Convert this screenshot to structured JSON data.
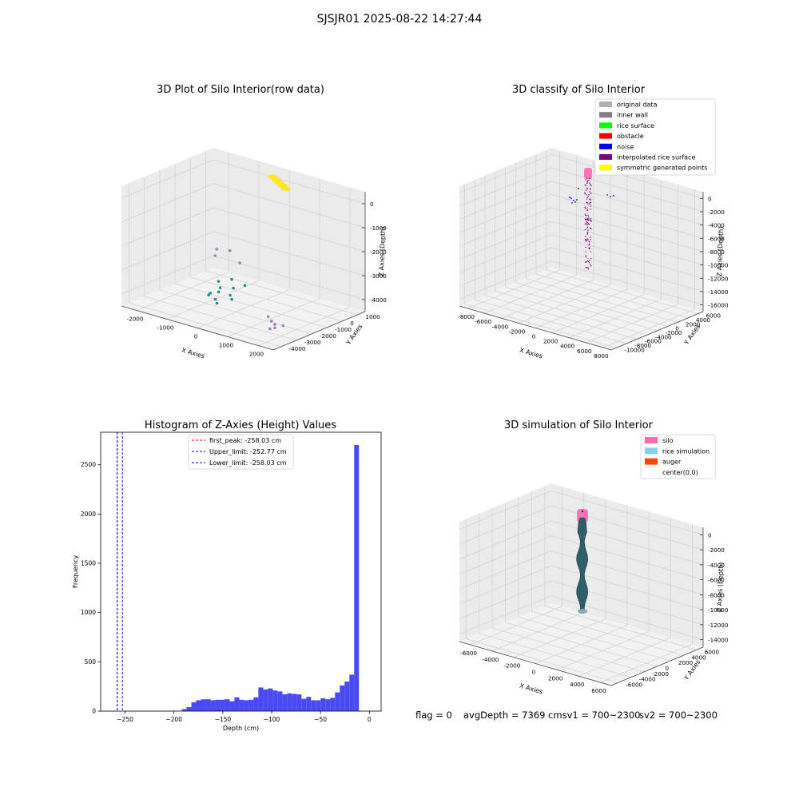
{
  "figure": {
    "suptitle": "SJSJR01 2025-08-22 14:27:44",
    "status_flag": "flag = 0",
    "status_avg": "avgDepth = 7369 cmsv1 = 700~2300",
    "status_sv2": "sv2 = 700~2300"
  },
  "chart_data": [
    {
      "type": "scatter",
      "title": "3D Plot of Silo Interior(row data)",
      "xlabel": "X Axies",
      "ylabel": "Y Axies",
      "zlabel": "Z Axies (Depth)",
      "xticks": [
        "-2000",
        "-1000",
        "0",
        "1000",
        "2000"
      ],
      "yticks": [
        "1000",
        "0",
        "-1000",
        "-2000",
        "-3000",
        "-4000"
      ],
      "zticks": [
        "0",
        "-1000",
        "-2000",
        "-3000",
        "-4000"
      ],
      "series": [
        {
          "color": "#fde725",
          "points": [
            [
              -300,
              900,
              100
            ],
            [
              -150,
              800,
              60
            ],
            [
              0,
              700,
              30
            ],
            [
              150,
              600,
              0
            ],
            [
              300,
              500,
              -30
            ]
          ]
        },
        {
          "color": "#21918c",
          "points": [
            [
              -900,
              -1200,
              -3900
            ],
            [
              -700,
              -1500,
              -4000
            ],
            [
              -600,
              -1800,
              -4050
            ],
            [
              -400,
              -1300,
              -3950
            ],
            [
              -300,
              -1700,
              -4100
            ],
            [
              -200,
              -1000,
              -3850
            ],
            [
              -800,
              -1900,
              -4150
            ],
            [
              -500,
              -2200,
              -4200
            ],
            [
              -100,
              -2000,
              -4100
            ],
            [
              -650,
              -900,
              -3800
            ],
            [
              -350,
              -2400,
              -4250
            ],
            [
              -750,
              -2100,
              -4150
            ]
          ]
        },
        {
          "color": "#9d7fba",
          "points": [
            [
              -1700,
              300,
              -3300
            ],
            [
              -1400,
              500,
              -3300
            ],
            [
              -1600,
              0,
              -3450
            ],
            [
              -900,
              100,
              -3500
            ],
            [
              1500,
              -3000,
              -3900
            ],
            [
              1700,
              -3200,
              -3950
            ],
            [
              1900,
              -3400,
              -3950
            ],
            [
              2000,
              -3600,
              -4000
            ],
            [
              2100,
              -3300,
              -3950
            ],
            [
              1900,
              -3700,
              -4050
            ]
          ]
        }
      ]
    },
    {
      "type": "scatter",
      "title": "3D classify of Silo Interior",
      "xlabel": "X Axies",
      "ylabel": "Y Axies",
      "zlabel": "Z Axies (Depth)",
      "xticks": [
        "-8000",
        "-6000",
        "-4000",
        "-2000",
        "0",
        "2000",
        "4000",
        "6000",
        "8000"
      ],
      "yticks": [
        "6000",
        "4000",
        "2000",
        "0",
        "-2000",
        "-4000",
        "-6000",
        "-8000",
        "-10000"
      ],
      "zticks": [
        "0",
        "-2000",
        "-4000",
        "-6000",
        "-8000",
        "-10000",
        "-12000",
        "-14000",
        "-16000"
      ],
      "legend_position": "top-right",
      "legend": [
        {
          "label": "original data",
          "color": "#b0b0b0"
        },
        {
          "label": "inner wall",
          "color": "#808080"
        },
        {
          "label": "rice surface",
          "color": "#00ff00"
        },
        {
          "label": "obstacle",
          "color": "#ff0000"
        },
        {
          "label": "noise",
          "color": "#0000ff"
        },
        {
          "label": "interpolated rice surface",
          "color": "#800080"
        },
        {
          "label": "symmetric generated points",
          "color": "#ffff00"
        }
      ]
    },
    {
      "type": "bar",
      "title": "Histogram of Z-Axies (Height) Values",
      "xlabel": "Depth (cm)",
      "ylabel": "Frequency",
      "xlim": [
        -275,
        12
      ],
      "ylim": [
        0,
        2830
      ],
      "xticks": [
        -250,
        -200,
        -150,
        -100,
        -50,
        0
      ],
      "yticks": [
        0,
        500,
        1000,
        1500,
        2000,
        2500
      ],
      "bin_width": 4.9,
      "bin_start": -192,
      "color": "#4a4af5",
      "values": [
        20,
        40,
        90,
        110,
        120,
        120,
        110,
        115,
        115,
        120,
        100,
        140,
        115,
        110,
        115,
        140,
        240,
        220,
        230,
        210,
        200,
        170,
        180,
        175,
        170,
        125,
        145,
        110,
        110,
        130,
        120,
        135,
        190,
        260,
        300,
        370,
        2700
      ],
      "vlines": [
        {
          "label": "first_peak: -258.03 cm",
          "value": -258.03,
          "color": "#ff0000"
        },
        {
          "label": "Upper_limit: -252.77 cm",
          "value": -252.77,
          "color": "#0000cc"
        },
        {
          "label": "Lower_limit: -258.03 cm",
          "value": -258.03,
          "color": "#0000cc"
        }
      ],
      "legend_position": "top-center"
    },
    {
      "type": "scatter",
      "title": "3D simulation of Silo Interior",
      "xlabel": "X Axies",
      "ylabel": "Y Axies",
      "zlabel": "Z Axies (Depth)",
      "xticks": [
        "-6000",
        "-4000",
        "-2000",
        "0",
        "2000",
        "4000",
        "6000"
      ],
      "yticks": [
        "6000",
        "4000",
        "2000",
        "0",
        "-2000",
        "-4000",
        "-6000"
      ],
      "zticks": [
        "0",
        "-2000",
        "-4000",
        "-6000",
        "-8000",
        "-10000",
        "-12000",
        "-14000"
      ],
      "legend_position": "top-right",
      "legend": [
        {
          "label": "silo",
          "color": "#ff69b4"
        },
        {
          "label": "rice simulation",
          "color": "#87ceeb"
        },
        {
          "label": "auger",
          "color": "#ff4500"
        },
        {
          "label": "center(0,0)",
          "color": "none"
        }
      ]
    }
  ]
}
